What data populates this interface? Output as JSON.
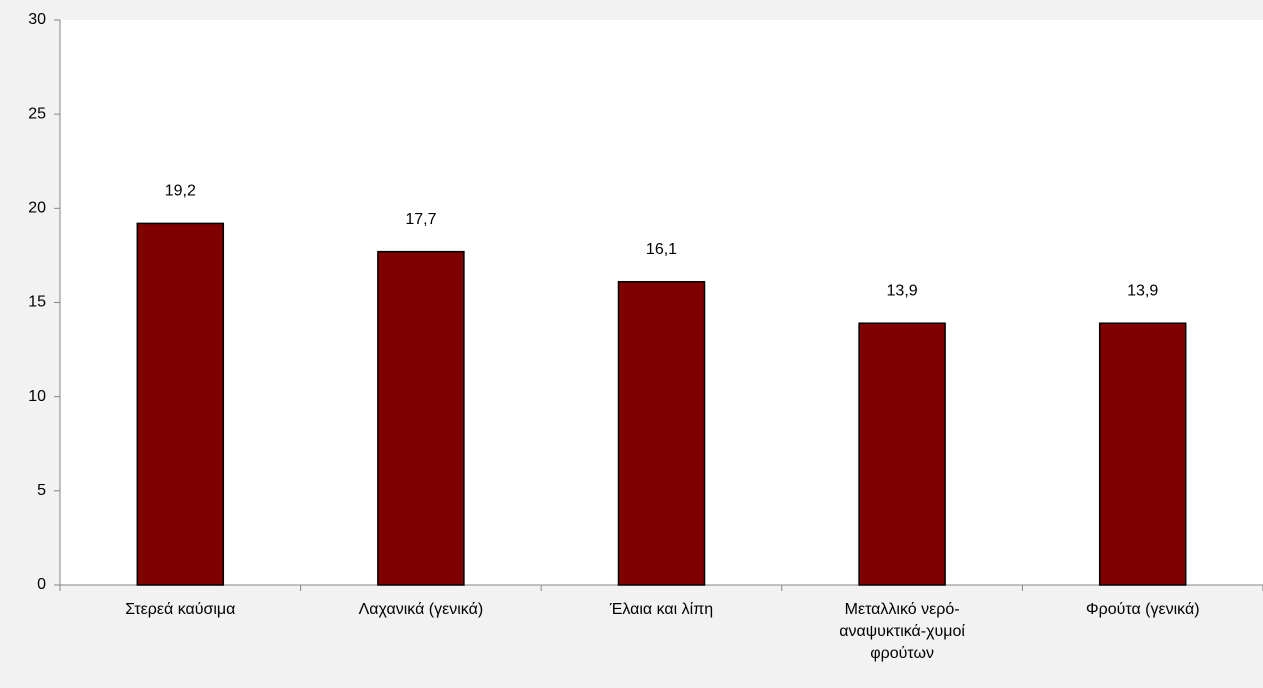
{
  "chart_data": {
    "type": "bar",
    "categories": [
      "Στερεά καύσιμα",
      "Λαχανικά (γενικά)",
      "Έλαια και λίπη",
      "Μεταλλικό νερό-αναψυκτικά-χυμοί φρούτων",
      "Φρούτα (γενικά)"
    ],
    "values": [
      19.2,
      17.7,
      16.1,
      13.9,
      13.9
    ],
    "value_labels": [
      "19,2",
      "17,7",
      "16,1",
      "13,9",
      "13,9"
    ],
    "color": "#800000",
    "ylim": [
      0,
      30
    ],
    "yticks": [
      0,
      5,
      10,
      15,
      20,
      25,
      30
    ],
    "grid": false
  }
}
